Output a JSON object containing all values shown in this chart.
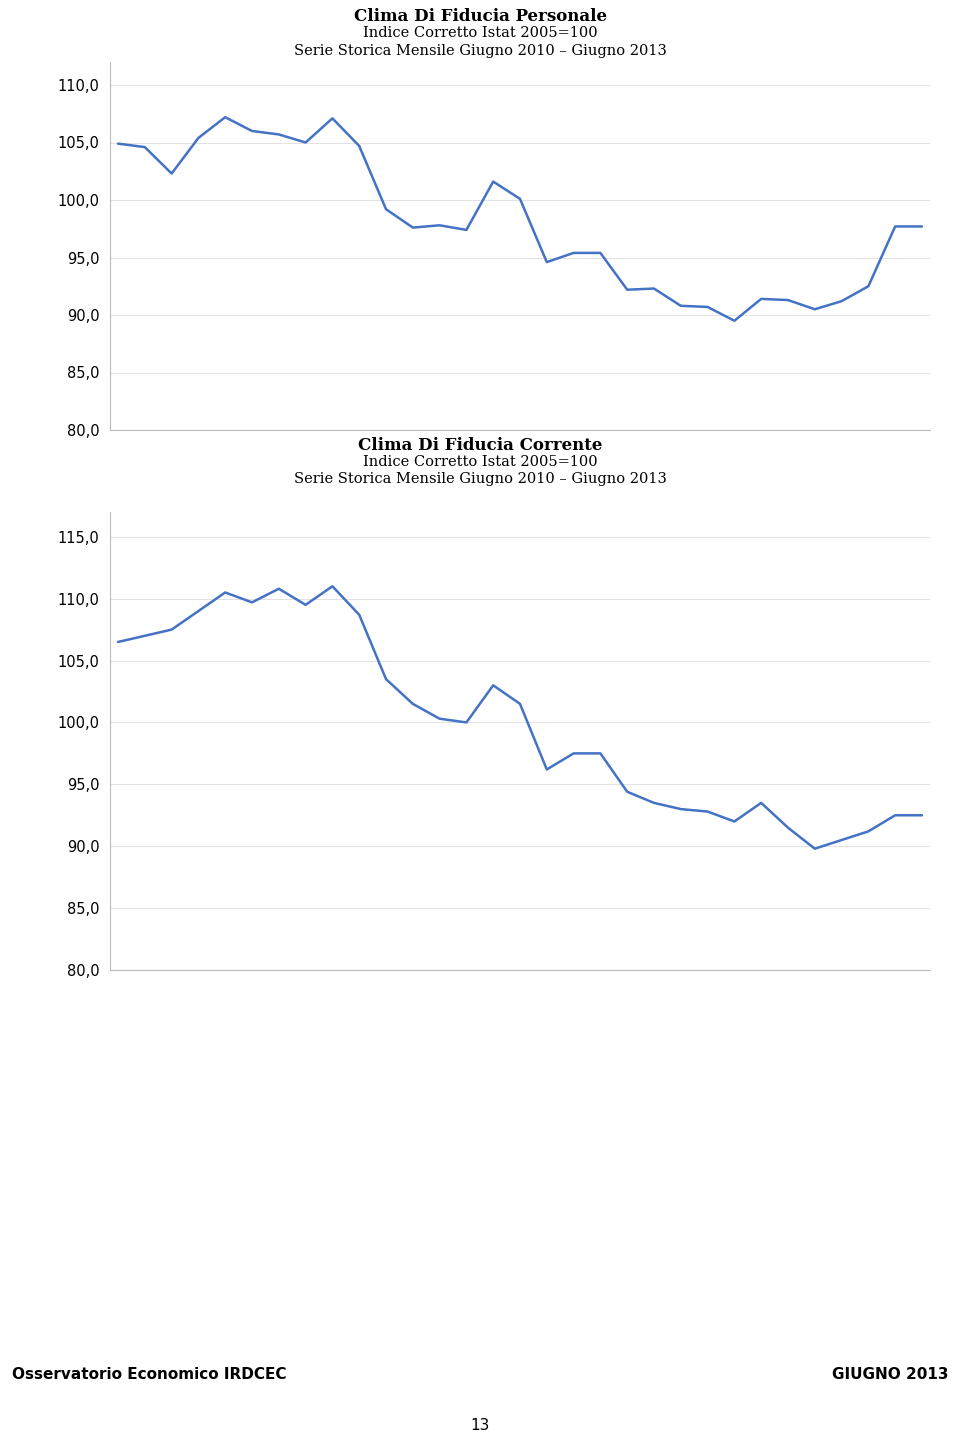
{
  "title1_line1": "Clima di fiducia personale",
  "title1_line2": "Indice corretto istat 2005=100",
  "title1_line3": "Serie storica mensile giugno 2010 – giugno 2013",
  "title2_line1": "Clima di fiducia corrente",
  "title2_line2": "Indice corretto istat 2005=100",
  "title2_line3": "Serie storica mensile giugno 2010 – giugno 2013",
  "chart1_values": [
    104.9,
    104.6,
    102.3,
    105.4,
    107.2,
    106.0,
    105.7,
    105.0,
    107.1,
    104.7,
    99.2,
    97.6,
    97.8,
    97.4,
    101.6,
    100.1,
    94.6,
    95.4,
    95.4,
    92.2,
    92.3,
    90.8,
    90.7,
    89.5,
    91.4,
    91.3,
    90.5,
    91.2,
    92.5,
    97.7,
    97.7
  ],
  "chart2_values": [
    106.5,
    107.0,
    107.5,
    109.0,
    110.5,
    109.7,
    110.8,
    109.5,
    111.0,
    108.7,
    103.5,
    101.5,
    100.3,
    100.0,
    103.0,
    101.5,
    96.2,
    97.5,
    97.5,
    94.4,
    93.5,
    93.0,
    92.8,
    92.0,
    93.5,
    91.5,
    89.8,
    90.5,
    91.2,
    92.5,
    92.5
  ],
  "line_color": "#4472C4",
  "ylim1": [
    80.0,
    112.0
  ],
  "ylim2": [
    80.0,
    117.0
  ],
  "yticks1": [
    80.0,
    85.0,
    90.0,
    95.0,
    100.0,
    105.0,
    110.0
  ],
  "yticks2": [
    80.0,
    85.0,
    90.0,
    95.0,
    100.0,
    105.0,
    110.0,
    115.0
  ],
  "footer_left": "Osservatorio Economico IRDCEC",
  "footer_right": "GIUGNO 2013",
  "footer_bg": "#FFFF00",
  "page_number": "13"
}
